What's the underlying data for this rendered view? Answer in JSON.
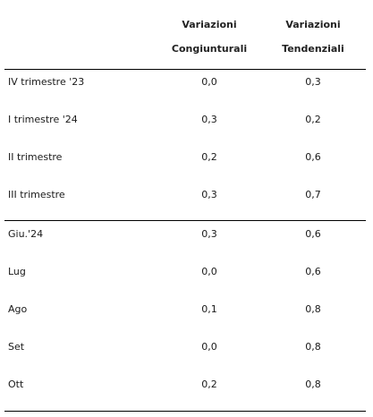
{
  "header": {
    "col1_line1": "Variazioni",
    "col1_line2": "Congiunturali",
    "col2_line1": "Variazioni",
    "col2_line2": "Tendenziali"
  },
  "quarterly_rows": [
    {
      "label": "IV trimestre '23",
      "congiunturali": "0,0",
      "tendenziali": "0,3"
    },
    {
      "label": "I trimestre '24",
      "congiunturali": "0,3",
      "tendenziali": "0,2"
    },
    {
      "label": "II trimestre",
      "congiunturali": "0,2",
      "tendenziali": "0,6"
    },
    {
      "label": "III trimestre",
      "congiunturali": "0,3",
      "tendenziali": "0,7"
    }
  ],
  "monthly_rows": [
    {
      "label": "Giu.'24",
      "congiunturali": "0,3",
      "tendenziali": "0,6"
    },
    {
      "label": "Lug",
      "congiunturali": "0,0",
      "tendenziali": "0,6"
    },
    {
      "label": "Ago",
      "congiunturali": "0,1",
      "tendenziali": "0,8"
    },
    {
      "label": "Set",
      "congiunturali": "0,0",
      "tendenziali": "0,8"
    },
    {
      "label": "Ott",
      "congiunturali": "0,2",
      "tendenziali": "0,8"
    }
  ]
}
